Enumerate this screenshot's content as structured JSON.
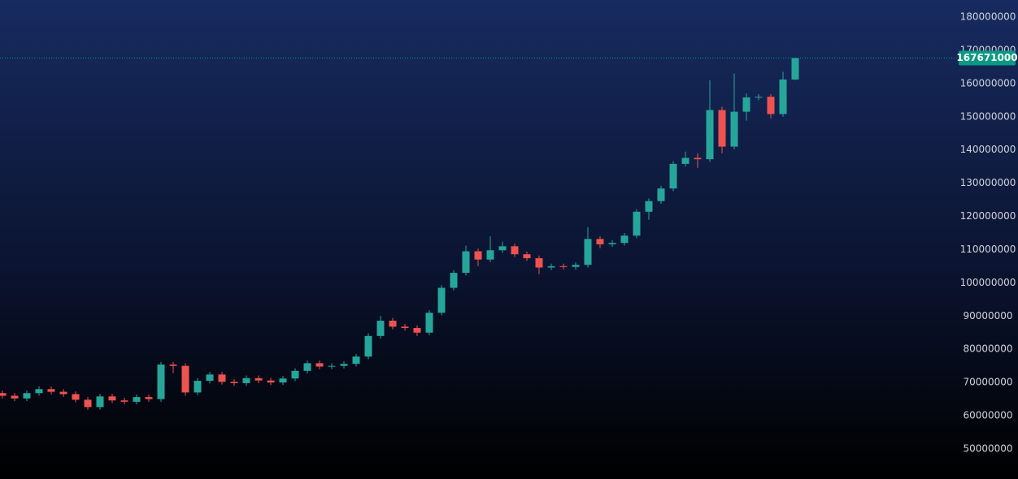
{
  "chart_data": {
    "type": "candlestick",
    "up_color": "#26a69a",
    "down_color": "#ef5350",
    "ylim": [
      40950000,
      185130000
    ],
    "yticks": [
      50000000,
      60000000,
      70000000,
      80000000,
      90000000,
      100000000,
      110000000,
      120000000,
      130000000,
      140000000,
      150000000,
      160000000,
      170000000,
      180000000
    ],
    "last_price": 167671000,
    "last_price_color": "#089981",
    "open": [
      66800000,
      66000000,
      65200000,
      66800000,
      68000000,
      67200000,
      66500000,
      64800000,
      62600000,
      65800000,
      64600000,
      64200000,
      65600000,
      65000000,
      75400000,
      75000000,
      67000000,
      70500000,
      72400000,
      70200000,
      69800000,
      71300000,
      70600000,
      70000000,
      71200000,
      73500000,
      75800000,
      74800000,
      75000000,
      75600000,
      77800000,
      84000000,
      88600000,
      86800000,
      86400000,
      85000000,
      91000000,
      98500000,
      103000000,
      109500000,
      107000000,
      109800000,
      111000000,
      108600000,
      107400000,
      104600000,
      105000000,
      104800000,
      105400000,
      113200000,
      111600000,
      112000000,
      114200000,
      121400000,
      124600000,
      128400000,
      135800000,
      137600000,
      137200000,
      152000000,
      141000000,
      151500000,
      155800000,
      156000000,
      150800000,
      161200000
    ],
    "high": [
      67600000,
      66800000,
      67600000,
      68800000,
      68800000,
      68000000,
      67300000,
      65600000,
      66600000,
      66600000,
      65400000,
      66400000,
      66400000,
      76200000,
      76200000,
      75800000,
      71300000,
      73200000,
      73200000,
      71000000,
      72100000,
      72100000,
      71400000,
      72000000,
      74300000,
      76600000,
      76600000,
      75800000,
      76400000,
      78600000,
      84800000,
      90000000,
      89400000,
      87600000,
      87200000,
      91800000,
      99300000,
      103800000,
      111200000,
      110300000,
      114000000,
      112400000,
      111800000,
      109400000,
      108200000,
      105800000,
      105800000,
      106200000,
      116800000,
      114000000,
      112800000,
      115000000,
      122200000,
      125400000,
      129200000,
      136600000,
      139500000,
      139000000,
      161000000,
      153000000,
      163000000,
      157000000,
      156800000,
      156800000,
      163500000,
      167671000
    ],
    "low": [
      65200000,
      64400000,
      64400000,
      66000000,
      66400000,
      65700000,
      64000000,
      61800000,
      61800000,
      63800000,
      63400000,
      63400000,
      64200000,
      64200000,
      72800000,
      66000000,
      66200000,
      69700000,
      69400000,
      69000000,
      69000000,
      69800000,
      69200000,
      69200000,
      70400000,
      72700000,
      74000000,
      74000000,
      74200000,
      74800000,
      77000000,
      83200000,
      86000000,
      85600000,
      84000000,
      84200000,
      90200000,
      97700000,
      102200000,
      105000000,
      106200000,
      109000000,
      107800000,
      106600000,
      102600000,
      103800000,
      104000000,
      104000000,
      104600000,
      110400000,
      110800000,
      111200000,
      113400000,
      119000000,
      123800000,
      127600000,
      135000000,
      134600000,
      136400000,
      139000000,
      140200000,
      148800000,
      155000000,
      149500000,
      150000000,
      161000000
    ],
    "close": [
      66000000,
      65200000,
      66800000,
      68000000,
      67200000,
      66500000,
      64800000,
      62600000,
      65800000,
      64600000,
      64200000,
      65600000,
      65000000,
      75400000,
      75000000,
      67000000,
      70500000,
      72400000,
      70200000,
      69800000,
      71300000,
      70600000,
      70000000,
      71200000,
      73500000,
      75800000,
      74800000,
      75000000,
      75600000,
      77800000,
      84000000,
      88600000,
      86800000,
      86400000,
      85000000,
      91000000,
      98500000,
      103000000,
      109500000,
      107000000,
      109800000,
      111000000,
      108600000,
      107400000,
      104600000,
      105000000,
      104800000,
      105400000,
      113200000,
      111600000,
      112000000,
      114200000,
      121400000,
      124600000,
      128400000,
      135800000,
      137600000,
      137200000,
      152000000,
      141000000,
      151500000,
      155800000,
      156000000,
      150800000,
      161200000,
      167671000
    ]
  }
}
